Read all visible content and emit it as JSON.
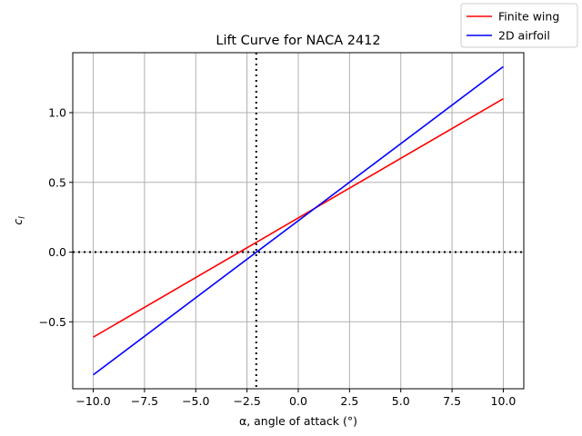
{
  "chart_data": {
    "type": "line",
    "title": "Lift Curve for NACA 2412",
    "xlabel": "α, angle of attack (°)",
    "ylabel": "c_l",
    "xlim": [
      -11,
      11
    ],
    "ylim": [
      -0.98,
      1.43
    ],
    "xticks": [
      -10.0,
      -7.5,
      -5.0,
      -2.5,
      0.0,
      2.5,
      5.0,
      7.5,
      10.0
    ],
    "xtick_labels": [
      "−10.0",
      "−7.5",
      "−5.0",
      "−2.5",
      "0.0",
      "2.5",
      "5.0",
      "7.5",
      "10.0"
    ],
    "yticks": [
      -0.5,
      0.0,
      0.5,
      1.0
    ],
    "ytick_labels": [
      "−0.5",
      "0.0",
      "0.5",
      "1.0"
    ],
    "grid": true,
    "legend_position": "top-right",
    "series": [
      {
        "name": "Finite wing",
        "color": "#ff0000",
        "x": [
          -10,
          10
        ],
        "y": [
          -0.61,
          1.1
        ]
      },
      {
        "name": "2D airfoil",
        "color": "#0000ff",
        "x": [
          -10,
          10
        ],
        "y": [
          -0.88,
          1.33
        ]
      }
    ],
    "reference_lines": [
      {
        "orientation": "vertical",
        "x": -2.05,
        "style": "dotted",
        "color": "#000000"
      },
      {
        "orientation": "horizontal",
        "y": 0.0,
        "style": "dotted",
        "color": "#000000"
      }
    ]
  }
}
